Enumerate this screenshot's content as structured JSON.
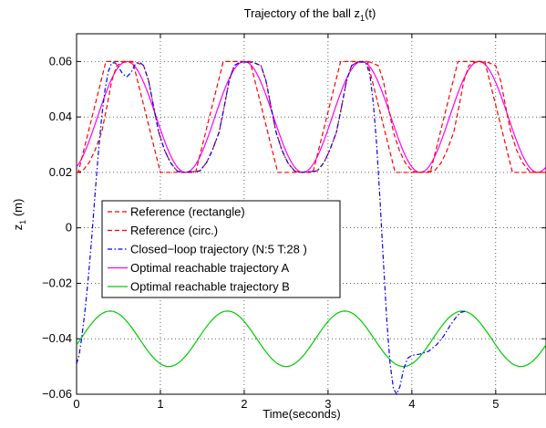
{
  "chart_data": {
    "type": "line",
    "title_main": "Trajectory of the ball z",
    "title_sub": "1",
    "title_tail": "(t)",
    "xlabel": "Time(seconds)",
    "ylabel_main": "z",
    "ylabel_sub": "1",
    "ylabel_tail": " (m)",
    "xlim": [
      0,
      5.6
    ],
    "ylim": [
      -0.06,
      0.07
    ],
    "xticks": [
      0,
      1,
      2,
      3,
      4,
      5
    ],
    "xtick_labels": [
      "0",
      "1",
      "2",
      "3",
      "4",
      "5"
    ],
    "yticks": [
      -0.06,
      -0.04,
      -0.02,
      0,
      0.02,
      0.04,
      0.06
    ],
    "ytick_labels": [
      "−0.06",
      "−0.04",
      "−0.02",
      "0",
      "0.02",
      "0.04",
      "0.06"
    ],
    "grid": true,
    "legend_position": "center-left",
    "series": [
      {
        "name": "Reference (rectangle)",
        "color": "#ff0000",
        "style": "dashed",
        "points": [
          [
            0,
            0.02
          ],
          [
            0.02,
            0.02
          ],
          [
            0.35,
            0.06
          ],
          [
            0.67,
            0.06
          ],
          [
            1.0,
            0.02
          ],
          [
            1.42,
            0.02
          ],
          [
            1.75,
            0.06
          ],
          [
            2.07,
            0.06
          ],
          [
            2.4,
            0.02
          ],
          [
            2.82,
            0.02
          ],
          [
            3.15,
            0.06
          ],
          [
            3.47,
            0.06
          ],
          [
            3.8,
            0.02
          ],
          [
            4.22,
            0.02
          ],
          [
            4.55,
            0.06
          ],
          [
            4.87,
            0.06
          ],
          [
            5.2,
            0.02
          ],
          [
            5.6,
            0.02
          ]
        ]
      },
      {
        "name": "Reference (circ.)",
        "color": "#ff0000",
        "style": "dashed",
        "points": [
          [
            0,
            0.02
          ],
          [
            0.07,
            0.0205
          ],
          [
            0.15,
            0.0235
          ],
          [
            0.22,
            0.028
          ],
          [
            0.3,
            0.0345
          ],
          [
            0.36,
            0.0435
          ],
          [
            0.42,
            0.053
          ],
          [
            0.48,
            0.0585
          ],
          [
            0.55,
            0.0598
          ],
          [
            0.7,
            0.0598
          ],
          [
            0.8,
            0.0585
          ],
          [
            0.86,
            0.053
          ],
          [
            0.92,
            0.0435
          ],
          [
            0.98,
            0.0345
          ],
          [
            1.05,
            0.028
          ],
          [
            1.12,
            0.0235
          ],
          [
            1.2,
            0.0205
          ],
          [
            1.27,
            0.02
          ],
          [
            1.47,
            0.0205
          ],
          [
            1.55,
            0.0235
          ],
          [
            1.62,
            0.028
          ],
          [
            1.7,
            0.0345
          ],
          [
            1.76,
            0.0435
          ],
          [
            1.82,
            0.053
          ],
          [
            1.88,
            0.0585
          ],
          [
            1.95,
            0.0598
          ],
          [
            2.1,
            0.0598
          ],
          [
            2.2,
            0.0585
          ],
          [
            2.26,
            0.053
          ],
          [
            2.32,
            0.0435
          ],
          [
            2.38,
            0.0345
          ],
          [
            2.45,
            0.028
          ],
          [
            2.52,
            0.0235
          ],
          [
            2.6,
            0.0205
          ],
          [
            2.67,
            0.02
          ],
          [
            2.87,
            0.0205
          ],
          [
            2.95,
            0.0235
          ],
          [
            3.02,
            0.028
          ],
          [
            3.1,
            0.0345
          ],
          [
            3.16,
            0.0435
          ],
          [
            3.22,
            0.053
          ],
          [
            3.28,
            0.0585
          ],
          [
            3.35,
            0.0598
          ],
          [
            3.5,
            0.0598
          ],
          [
            3.6,
            0.0585
          ],
          [
            3.66,
            0.053
          ],
          [
            3.72,
            0.0435
          ],
          [
            3.78,
            0.0345
          ],
          [
            3.85,
            0.028
          ],
          [
            3.92,
            0.0235
          ],
          [
            4.0,
            0.0205
          ],
          [
            4.07,
            0.02
          ],
          [
            4.27,
            0.0205
          ],
          [
            4.35,
            0.0235
          ],
          [
            4.42,
            0.028
          ],
          [
            4.5,
            0.0345
          ],
          [
            4.56,
            0.0435
          ],
          [
            4.62,
            0.053
          ],
          [
            4.68,
            0.0585
          ],
          [
            4.75,
            0.0598
          ],
          [
            4.9,
            0.0598
          ],
          [
            5.0,
            0.0585
          ],
          [
            5.06,
            0.053
          ],
          [
            5.12,
            0.0435
          ],
          [
            5.18,
            0.0345
          ],
          [
            5.25,
            0.028
          ],
          [
            5.32,
            0.0235
          ],
          [
            5.4,
            0.0205
          ],
          [
            5.47,
            0.02
          ],
          [
            5.6,
            0.02
          ]
        ]
      },
      {
        "name": "Closed−loop trajectory (N:5 T:28 )",
        "color": "#0000ff",
        "style": "dashdot",
        "points": [
          [
            0,
            -0.049
          ],
          [
            0.03,
            -0.046
          ],
          [
            0.06,
            -0.04
          ],
          [
            0.1,
            -0.03
          ],
          [
            0.14,
            -0.018
          ],
          [
            0.18,
            -0.004
          ],
          [
            0.22,
            0.012
          ],
          [
            0.26,
            0.027
          ],
          [
            0.3,
            0.04
          ],
          [
            0.34,
            0.05
          ],
          [
            0.38,
            0.0565
          ],
          [
            0.42,
            0.0595
          ],
          [
            0.46,
            0.0595
          ],
          [
            0.5,
            0.058
          ],
          [
            0.55,
            0.0555
          ],
          [
            0.6,
            0.0545
          ],
          [
            0.65,
            0.056
          ],
          [
            0.7,
            0.059
          ],
          [
            0.75,
            0.0598
          ],
          [
            0.8,
            0.0585
          ],
          [
            0.86,
            0.053
          ],
          [
            0.92,
            0.0435
          ],
          [
            0.98,
            0.0345
          ],
          [
            1.05,
            0.028
          ],
          [
            1.12,
            0.0235
          ],
          [
            1.2,
            0.0205
          ],
          [
            1.27,
            0.02
          ],
          [
            1.47,
            0.0205
          ],
          [
            1.55,
            0.0235
          ],
          [
            1.62,
            0.028
          ],
          [
            1.7,
            0.0345
          ],
          [
            1.76,
            0.0435
          ],
          [
            1.82,
            0.053
          ],
          [
            1.88,
            0.0585
          ],
          [
            1.95,
            0.0598
          ],
          [
            2.1,
            0.0598
          ],
          [
            2.2,
            0.0585
          ],
          [
            2.26,
            0.053
          ],
          [
            2.32,
            0.0435
          ],
          [
            2.38,
            0.0345
          ],
          [
            2.45,
            0.028
          ],
          [
            2.52,
            0.0235
          ],
          [
            2.6,
            0.0205
          ],
          [
            2.67,
            0.02
          ],
          [
            2.87,
            0.0205
          ],
          [
            2.95,
            0.0235
          ],
          [
            3.02,
            0.028
          ],
          [
            3.1,
            0.0345
          ],
          [
            3.16,
            0.0435
          ],
          [
            3.22,
            0.053
          ],
          [
            3.28,
            0.0585
          ],
          [
            3.35,
            0.0598
          ],
          [
            3.42,
            0.0598
          ],
          [
            3.46,
            0.059
          ],
          [
            3.5,
            0.055
          ],
          [
            3.54,
            0.045
          ],
          [
            3.58,
            0.03
          ],
          [
            3.62,
            0.01
          ],
          [
            3.66,
            -0.012
          ],
          [
            3.7,
            -0.033
          ],
          [
            3.74,
            -0.049
          ],
          [
            3.78,
            -0.058
          ],
          [
            3.82,
            -0.06
          ],
          [
            3.86,
            -0.057
          ],
          [
            3.9,
            -0.051
          ],
          [
            3.95,
            -0.047
          ],
          [
            4.0,
            -0.046
          ],
          [
            4.1,
            -0.0455
          ],
          [
            4.2,
            -0.0445
          ],
          [
            4.3,
            -0.042
          ],
          [
            4.38,
            -0.039
          ],
          [
            4.45,
            -0.0355
          ],
          [
            4.52,
            -0.0325
          ],
          [
            4.58,
            -0.0305
          ],
          [
            4.65,
            -0.03
          ]
        ]
      },
      {
        "name": "Optimal reachable trajectory A",
        "color": "#ff00ff",
        "style": "solid",
        "function": {
          "kind": "sine",
          "offset": 0.04,
          "amplitude": 0.02,
          "period": 1.4,
          "peak_x": 0.6,
          "x_start": 0,
          "x_end": 5.6,
          "step": 0.02
        }
      },
      {
        "name": "Optimal reachable trajectory B",
        "color": "#00cc00",
        "style": "solid",
        "function": {
          "kind": "sine",
          "offset": -0.04,
          "amplitude": 0.01,
          "period": 1.4,
          "peak_x": 0.4,
          "x_start": 0,
          "x_end": 5.6,
          "step": 0.02
        }
      }
    ]
  }
}
